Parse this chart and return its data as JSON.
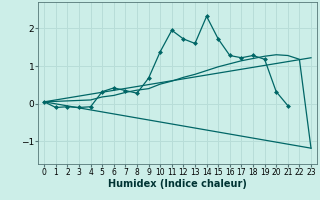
{
  "xlabel": "Humidex (Indice chaleur)",
  "bg_color": "#cceee8",
  "grid_color": "#b8ddd8",
  "line_color": "#006666",
  "xlim": [
    -0.5,
    23.5
  ],
  "ylim": [
    -1.6,
    2.7
  ],
  "yticks": [
    -1,
    0,
    1,
    2
  ],
  "xticks": [
    0,
    1,
    2,
    3,
    4,
    5,
    6,
    7,
    8,
    9,
    10,
    11,
    12,
    13,
    14,
    15,
    16,
    17,
    18,
    19,
    20,
    21,
    22,
    23
  ],
  "line1_x": [
    0,
    1,
    2,
    3,
    4,
    5,
    6,
    7,
    8,
    9,
    10,
    11,
    12,
    13,
    14,
    15,
    16,
    17,
    18,
    19,
    20,
    21
  ],
  "line1_y": [
    0.05,
    -0.1,
    -0.08,
    -0.1,
    -0.08,
    0.32,
    0.42,
    0.35,
    0.28,
    0.68,
    1.38,
    1.95,
    1.72,
    1.6,
    2.32,
    1.72,
    1.28,
    1.22,
    1.28,
    1.18,
    0.32,
    -0.05
  ],
  "line2_x": [
    0,
    4,
    5,
    6,
    7,
    8,
    9,
    10,
    11,
    12,
    13,
    14,
    15,
    16,
    17,
    18,
    19,
    20,
    21,
    22,
    23
  ],
  "line2_y": [
    0.05,
    0.1,
    0.18,
    0.22,
    0.3,
    0.36,
    0.4,
    0.52,
    0.6,
    0.7,
    0.78,
    0.88,
    0.98,
    1.06,
    1.14,
    1.2,
    1.26,
    1.3,
    1.28,
    1.18,
    -1.18
  ],
  "line3_x": [
    0,
    23
  ],
  "line3_y": [
    0.05,
    -1.18
  ],
  "line4_x": [
    0,
    23
  ],
  "line4_y": [
    0.05,
    1.22
  ]
}
